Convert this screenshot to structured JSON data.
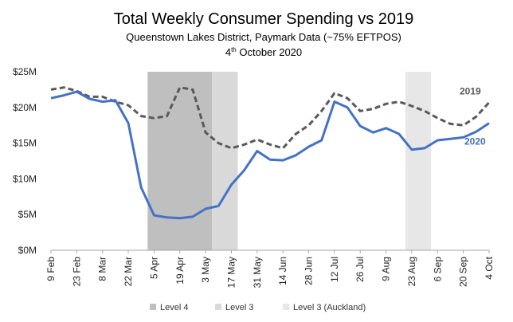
{
  "chart_data": {
    "type": "line",
    "title": "Total Weekly Consumer Spending vs 2019",
    "subtitle": "Queenstown Lakes District, Paymark Data (~75% EFTPOS)",
    "date_line": {
      "day": "4",
      "suffix": "th",
      "rest": " October 2020"
    },
    "y_ticks": [
      "$0M",
      "$5M",
      "$10M",
      "$15M",
      "$20M",
      "$25M"
    ],
    "y_tick_values": [
      0,
      5,
      10,
      15,
      20,
      25
    ],
    "ylim": [
      0,
      25
    ],
    "x_tick_labels": [
      "9 Feb",
      "23 Feb",
      "8 Mar",
      "22 Mar",
      "5 Apr",
      "19 Apr",
      "3 May",
      "17 May",
      "31 May",
      "14 Jun",
      "28 Jun",
      "12 Jul",
      "26 Jul",
      "9 Aug",
      "23 Aug",
      "6 Sep",
      "20 Sep",
      "4 Oct"
    ],
    "x_tick_week_index": [
      0,
      2,
      4,
      6,
      8,
      10,
      12,
      14,
      16,
      18,
      20,
      22,
      24,
      26,
      28,
      30,
      32,
      34
    ],
    "weeks_count": 35,
    "series": [
      {
        "name": "2019",
        "color": "#595959",
        "dash": true,
        "values": [
          22.5,
          22.8,
          22.3,
          21.5,
          21.5,
          20.8,
          20.3,
          18.8,
          18.5,
          18.8,
          22.8,
          22.5,
          16.5,
          15.0,
          14.3,
          14.8,
          15.5,
          14.8,
          14.3,
          16.3,
          17.5,
          19.5,
          22.0,
          21.3,
          19.5,
          19.8,
          20.5,
          20.8,
          20.2,
          19.5,
          18.5,
          17.7,
          17.5,
          18.7,
          20.7
        ]
      },
      {
        "name": "2020",
        "color": "#4472C4",
        "dash": false,
        "values": [
          21.3,
          21.7,
          22.2,
          21.2,
          20.8,
          21.0,
          17.8,
          8.8,
          4.9,
          4.6,
          4.5,
          4.7,
          5.8,
          6.2,
          9.2,
          11.2,
          13.9,
          12.7,
          12.6,
          13.3,
          14.5,
          15.4,
          20.8,
          20.0,
          17.4,
          16.5,
          17.1,
          16.3,
          14.1,
          14.3,
          15.4,
          15.6,
          15.8,
          16.6,
          17.8
        ]
      }
    ],
    "shaded_periods": [
      {
        "name": "Level 4",
        "color": "#BFBFBF",
        "start_week": 7.5,
        "end_week": 12.5
      },
      {
        "name": "Level 3",
        "color": "#D9D9D9",
        "start_week": 12.5,
        "end_week": 14.5
      },
      {
        "name": "Level 3 (Auckland)",
        "color": "#E7E7E7",
        "start_week": 27.5,
        "end_week": 29.5
      }
    ],
    "legend": [
      {
        "label": "Level 4",
        "color": "#BFBFBF"
      },
      {
        "label": "Level 3",
        "color": "#D9D9D9"
      },
      {
        "label": "Level 3 (Auckland)",
        "color": "#E7E7E7"
      }
    ],
    "legend_position": "bottom",
    "grid": false
  }
}
